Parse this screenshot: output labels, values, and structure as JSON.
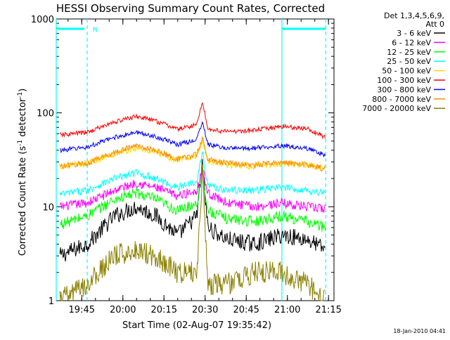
{
  "chart_data": {
    "type": "line",
    "title": "HESSI Observing Summary Count Rates, Corrected",
    "xlabel": "Start Time (02-Aug-07 19:35:42)",
    "ylabel_main": "Corrected Count Rate (s",
    "ylabel_sup1": "-1",
    "ylabel_mid": " detector",
    "ylabel_sup2": "-1",
    "ylabel_end": ")",
    "y_scale": "log",
    "ylim": [
      1,
      1000
    ],
    "y_ticks": [
      {
        "value": 1,
        "label": "1"
      },
      {
        "value": 10,
        "label": "10"
      },
      {
        "value": 100,
        "label": "100"
      },
      {
        "value": 1000,
        "label": "1000"
      }
    ],
    "xlim": [
      "19:35:42",
      "21:17:00"
    ],
    "x_ticks": [
      "19:45",
      "20:00",
      "20:15",
      "20:30",
      "20:45",
      "21:00",
      "21:15"
    ],
    "legend_title": [
      "Det 1,3,4,5,6,9,",
      "Att 0"
    ],
    "legend_position": "right",
    "timestamp": "18-Jan-2010 04:41",
    "flag_label": "N",
    "vertical_markers": [
      {
        "time": "19:35:42",
        "style": "solid",
        "color": "#00ffff"
      },
      {
        "time": "19:47:00",
        "style": "dashed",
        "color": "#00ffff"
      },
      {
        "time": "20:58:00",
        "style": "solid",
        "color": "#00ffff"
      },
      {
        "time": "21:14:00",
        "style": "dashed",
        "color": "#00ffff"
      }
    ],
    "flag_bars": [
      {
        "start": "19:36:00",
        "end": "19:46:00",
        "color": "#00ffff"
      },
      {
        "start": "20:58:00",
        "end": "21:14:00",
        "color": "#00ffff"
      }
    ],
    "x": [
      "19:37",
      "19:47",
      "19:57",
      "20:05",
      "20:12",
      "20:20",
      "20:27",
      "20:29",
      "20:31",
      "20:38",
      "20:48",
      "20:58",
      "21:07",
      "21:14"
    ],
    "series": [
      {
        "name": "3 - 6 keV",
        "color": "#000000",
        "values": [
          3,
          4,
          8,
          10,
          8,
          5,
          8,
          28,
          6,
          4.5,
          4,
          5,
          4.5,
          3.5
        ]
      },
      {
        "name": "6 - 12 keV",
        "color": "#ff00ff",
        "values": [
          10,
          11,
          15,
          18,
          16,
          13,
          15,
          26,
          14,
          11,
          10,
          11,
          10,
          9.5
        ]
      },
      {
        "name": "12 - 25 keV",
        "color": "#00ff00",
        "values": [
          6.5,
          8,
          12,
          14,
          12,
          9,
          11,
          24,
          9,
          7.5,
          7,
          8,
          7,
          6
        ]
      },
      {
        "name": "25 - 50 keV",
        "color": "#00ffff",
        "values": [
          13.5,
          15,
          20,
          23,
          20,
          16,
          19,
          38,
          17,
          15,
          15,
          16,
          15,
          14
        ]
      },
      {
        "name": "50 - 100 keV",
        "color": "#ffd700",
        "values": [
          27,
          29,
          37,
          42,
          38,
          31,
          35,
          52,
          31,
          28,
          27,
          29,
          28,
          26
        ]
      },
      {
        "name": "100 - 300 keV",
        "color": "#ff0000",
        "values": [
          58,
          62,
          80,
          92,
          82,
          67,
          75,
          135,
          67,
          63,
          65,
          72,
          68,
          55
        ]
      },
      {
        "name": "300 - 800 keV",
        "color": "#0000ff",
        "values": [
          40,
          43,
          55,
          62,
          56,
          46,
          52,
          82,
          46,
          42,
          42,
          45,
          42,
          35
        ]
      },
      {
        "name": "800 - 7000 keV",
        "color": "#ff8c00",
        "values": [
          27,
          29,
          38,
          45,
          40,
          32,
          36,
          55,
          32,
          29,
          28,
          30,
          28,
          25
        ]
      },
      {
        "name": "7000 - 20000 keV",
        "color": "#8b8000",
        "values": [
          1,
          1.5,
          3,
          3.5,
          3,
          2,
          2,
          25,
          1.5,
          1.5,
          2,
          2,
          1.5,
          1
        ]
      }
    ],
    "grid": false
  }
}
